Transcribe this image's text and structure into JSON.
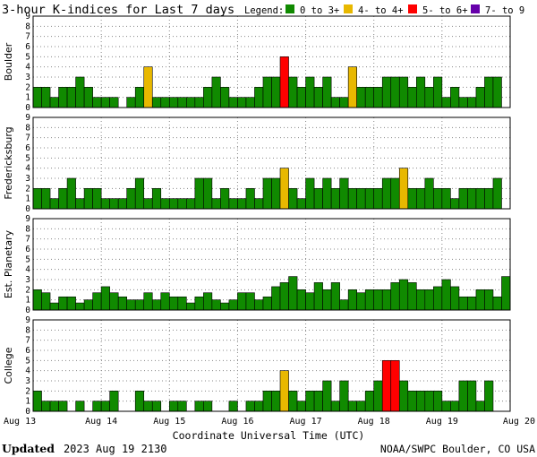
{
  "header": {
    "title": "3-hour K-indices for Last 7 days",
    "legend_label": "Legend:",
    "legend": [
      {
        "label": "0 to 3+",
        "color": "#108a00"
      },
      {
        "label": "4- to 4+",
        "color": "#e8b800"
      },
      {
        "label": "5- to 6+",
        "color": "#ff0000"
      },
      {
        "label": "7- to 9",
        "color": "#6600aa"
      }
    ]
  },
  "footer": {
    "updated_label": "Updated",
    "updated_value": "2023 Aug 19 2130",
    "credit": "NOAA/SWPC Boulder, CO USA"
  },
  "chart_data": {
    "type": "bar",
    "xlabel": "Coordinate Universal Time (UTC)",
    "x_ticks": [
      "Aug 13",
      "Aug 14",
      "Aug 15",
      "Aug 16",
      "Aug 17",
      "Aug 18",
      "Aug 19",
      "Aug 20"
    ],
    "ylim": [
      0,
      9
    ],
    "y_ticks": [
      "0",
      "1",
      "2",
      "3",
      "4",
      "5",
      "6",
      "7",
      "8",
      "9"
    ],
    "grid": true,
    "panels": [
      {
        "name": "Boulder",
        "values": [
          2,
          2,
          1,
          2,
          2,
          3,
          2,
          1,
          1,
          1,
          0,
          1,
          2,
          4,
          1,
          1,
          1,
          1,
          1,
          1,
          2,
          3,
          2,
          1,
          1,
          1,
          2,
          3,
          3,
          5,
          3,
          2,
          3,
          2,
          3,
          1,
          1,
          4,
          2,
          2,
          2,
          3,
          3,
          3,
          2,
          3,
          2,
          3,
          1,
          2,
          1,
          1,
          2,
          3,
          3,
          0
        ]
      },
      {
        "name": "Fredericksburg",
        "values": [
          2,
          2,
          1,
          2,
          3,
          1,
          2,
          2,
          1,
          1,
          1,
          2,
          3,
          1,
          2,
          1,
          1,
          1,
          1,
          3,
          3,
          1,
          2,
          1,
          1,
          2,
          1,
          3,
          3,
          4,
          2,
          1,
          3,
          2,
          3,
          2,
          3,
          2,
          2,
          2,
          2,
          3,
          3,
          4,
          2,
          2,
          3,
          2,
          2,
          1,
          2,
          2,
          2,
          2,
          3,
          0
        ]
      },
      {
        "name": "Est. Planetary",
        "values": [
          2,
          1.7,
          0.7,
          1.3,
          1.3,
          0.7,
          1,
          1.7,
          2.3,
          1.7,
          1.3,
          1,
          1,
          1.7,
          1,
          1.7,
          1.3,
          1.3,
          0.7,
          1.3,
          1.7,
          1,
          0.7,
          1,
          1.7,
          1.7,
          1,
          1.3,
          2.3,
          2.7,
          3.3,
          2,
          1.7,
          2.7,
          2,
          2.7,
          1,
          2,
          1.7,
          2,
          2,
          2,
          2.7,
          3,
          2.7,
          2,
          2,
          2.3,
          3,
          2.3,
          1.3,
          1.3,
          2,
          2,
          1.3,
          3.3
        ]
      },
      {
        "name": "College",
        "values": [
          2,
          1,
          1,
          1,
          0,
          1,
          0,
          1,
          1,
          2,
          0,
          0,
          2,
          1,
          1,
          0,
          1,
          1,
          0,
          1,
          1,
          0,
          0,
          1,
          0,
          1,
          1,
          2,
          2,
          4,
          2,
          1,
          2,
          2,
          3,
          1,
          3,
          1,
          1,
          2,
          3,
          5,
          5,
          3,
          2,
          2,
          2,
          2,
          1,
          1,
          3,
          3,
          1,
          3,
          0,
          0
        ]
      }
    ]
  }
}
